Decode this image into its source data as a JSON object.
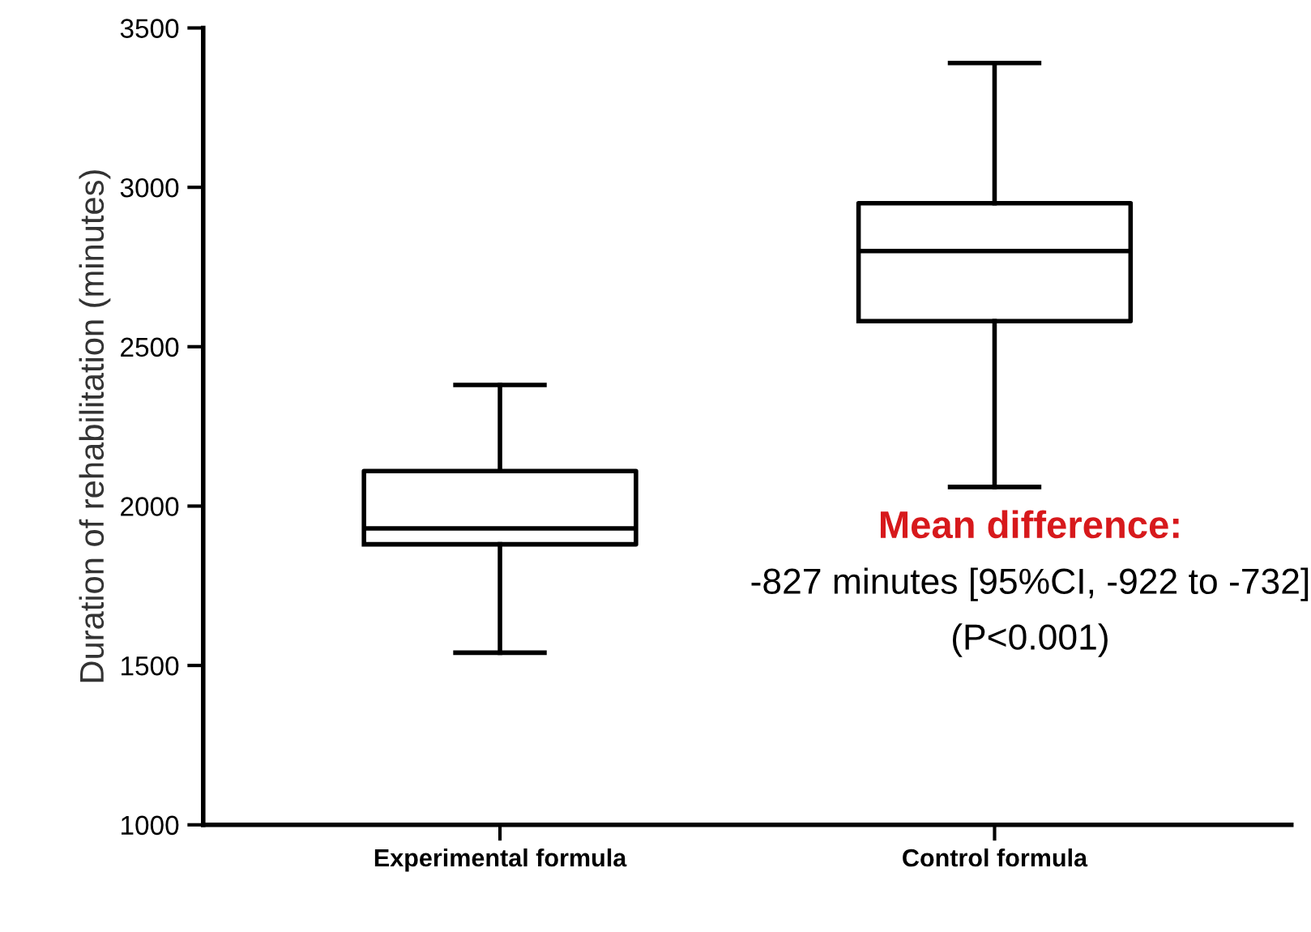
{
  "chart_data": {
    "type": "box",
    "ylabel": "Duration of rehabilitation (minutes)",
    "categories": [
      "Experimental formula",
      "Control formula"
    ],
    "boxes": [
      {
        "low": 1540,
        "q1": 1880,
        "median": 1930,
        "q3": 2110,
        "high": 2380
      },
      {
        "low": 2060,
        "q1": 2580,
        "median": 2800,
        "q3": 2950,
        "high": 3390
      }
    ],
    "ylim": [
      1000,
      3500
    ],
    "yticks": [
      1000,
      1500,
      2000,
      2500,
      3000,
      3500
    ],
    "grid": false,
    "legend": false,
    "annotations": [
      "Mean difference:",
      "-827 minutes [95%CI, -922 to -732]",
      "(P<0.001)"
    ]
  }
}
